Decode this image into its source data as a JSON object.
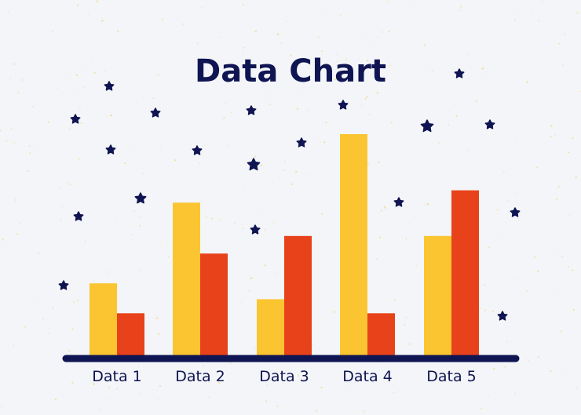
{
  "colors": {
    "background": "#f3f5f8",
    "navy": "#0f1452",
    "series_yellow": "#fbc531",
    "series_red": "#e8421b",
    "speckle": "#f5d27a"
  },
  "decor": {
    "star_icon": "star-icon",
    "count": 26
  },
  "chart_data": {
    "type": "bar",
    "title": "Data Chart",
    "xlabel": "",
    "ylabel": "",
    "categories": [
      "Data 1",
      "Data 2",
      "Data 3",
      "Data 4",
      "Data 5"
    ],
    "series": [
      {
        "color": "#fbc531",
        "values": [
          41,
          87,
          32,
          126,
          68
        ]
      },
      {
        "color": "#e8421b",
        "values": [
          24,
          58,
          68,
          24,
          94
        ]
      }
    ],
    "ylim": [
      0,
      140
    ],
    "grid": false,
    "legend": "none"
  }
}
